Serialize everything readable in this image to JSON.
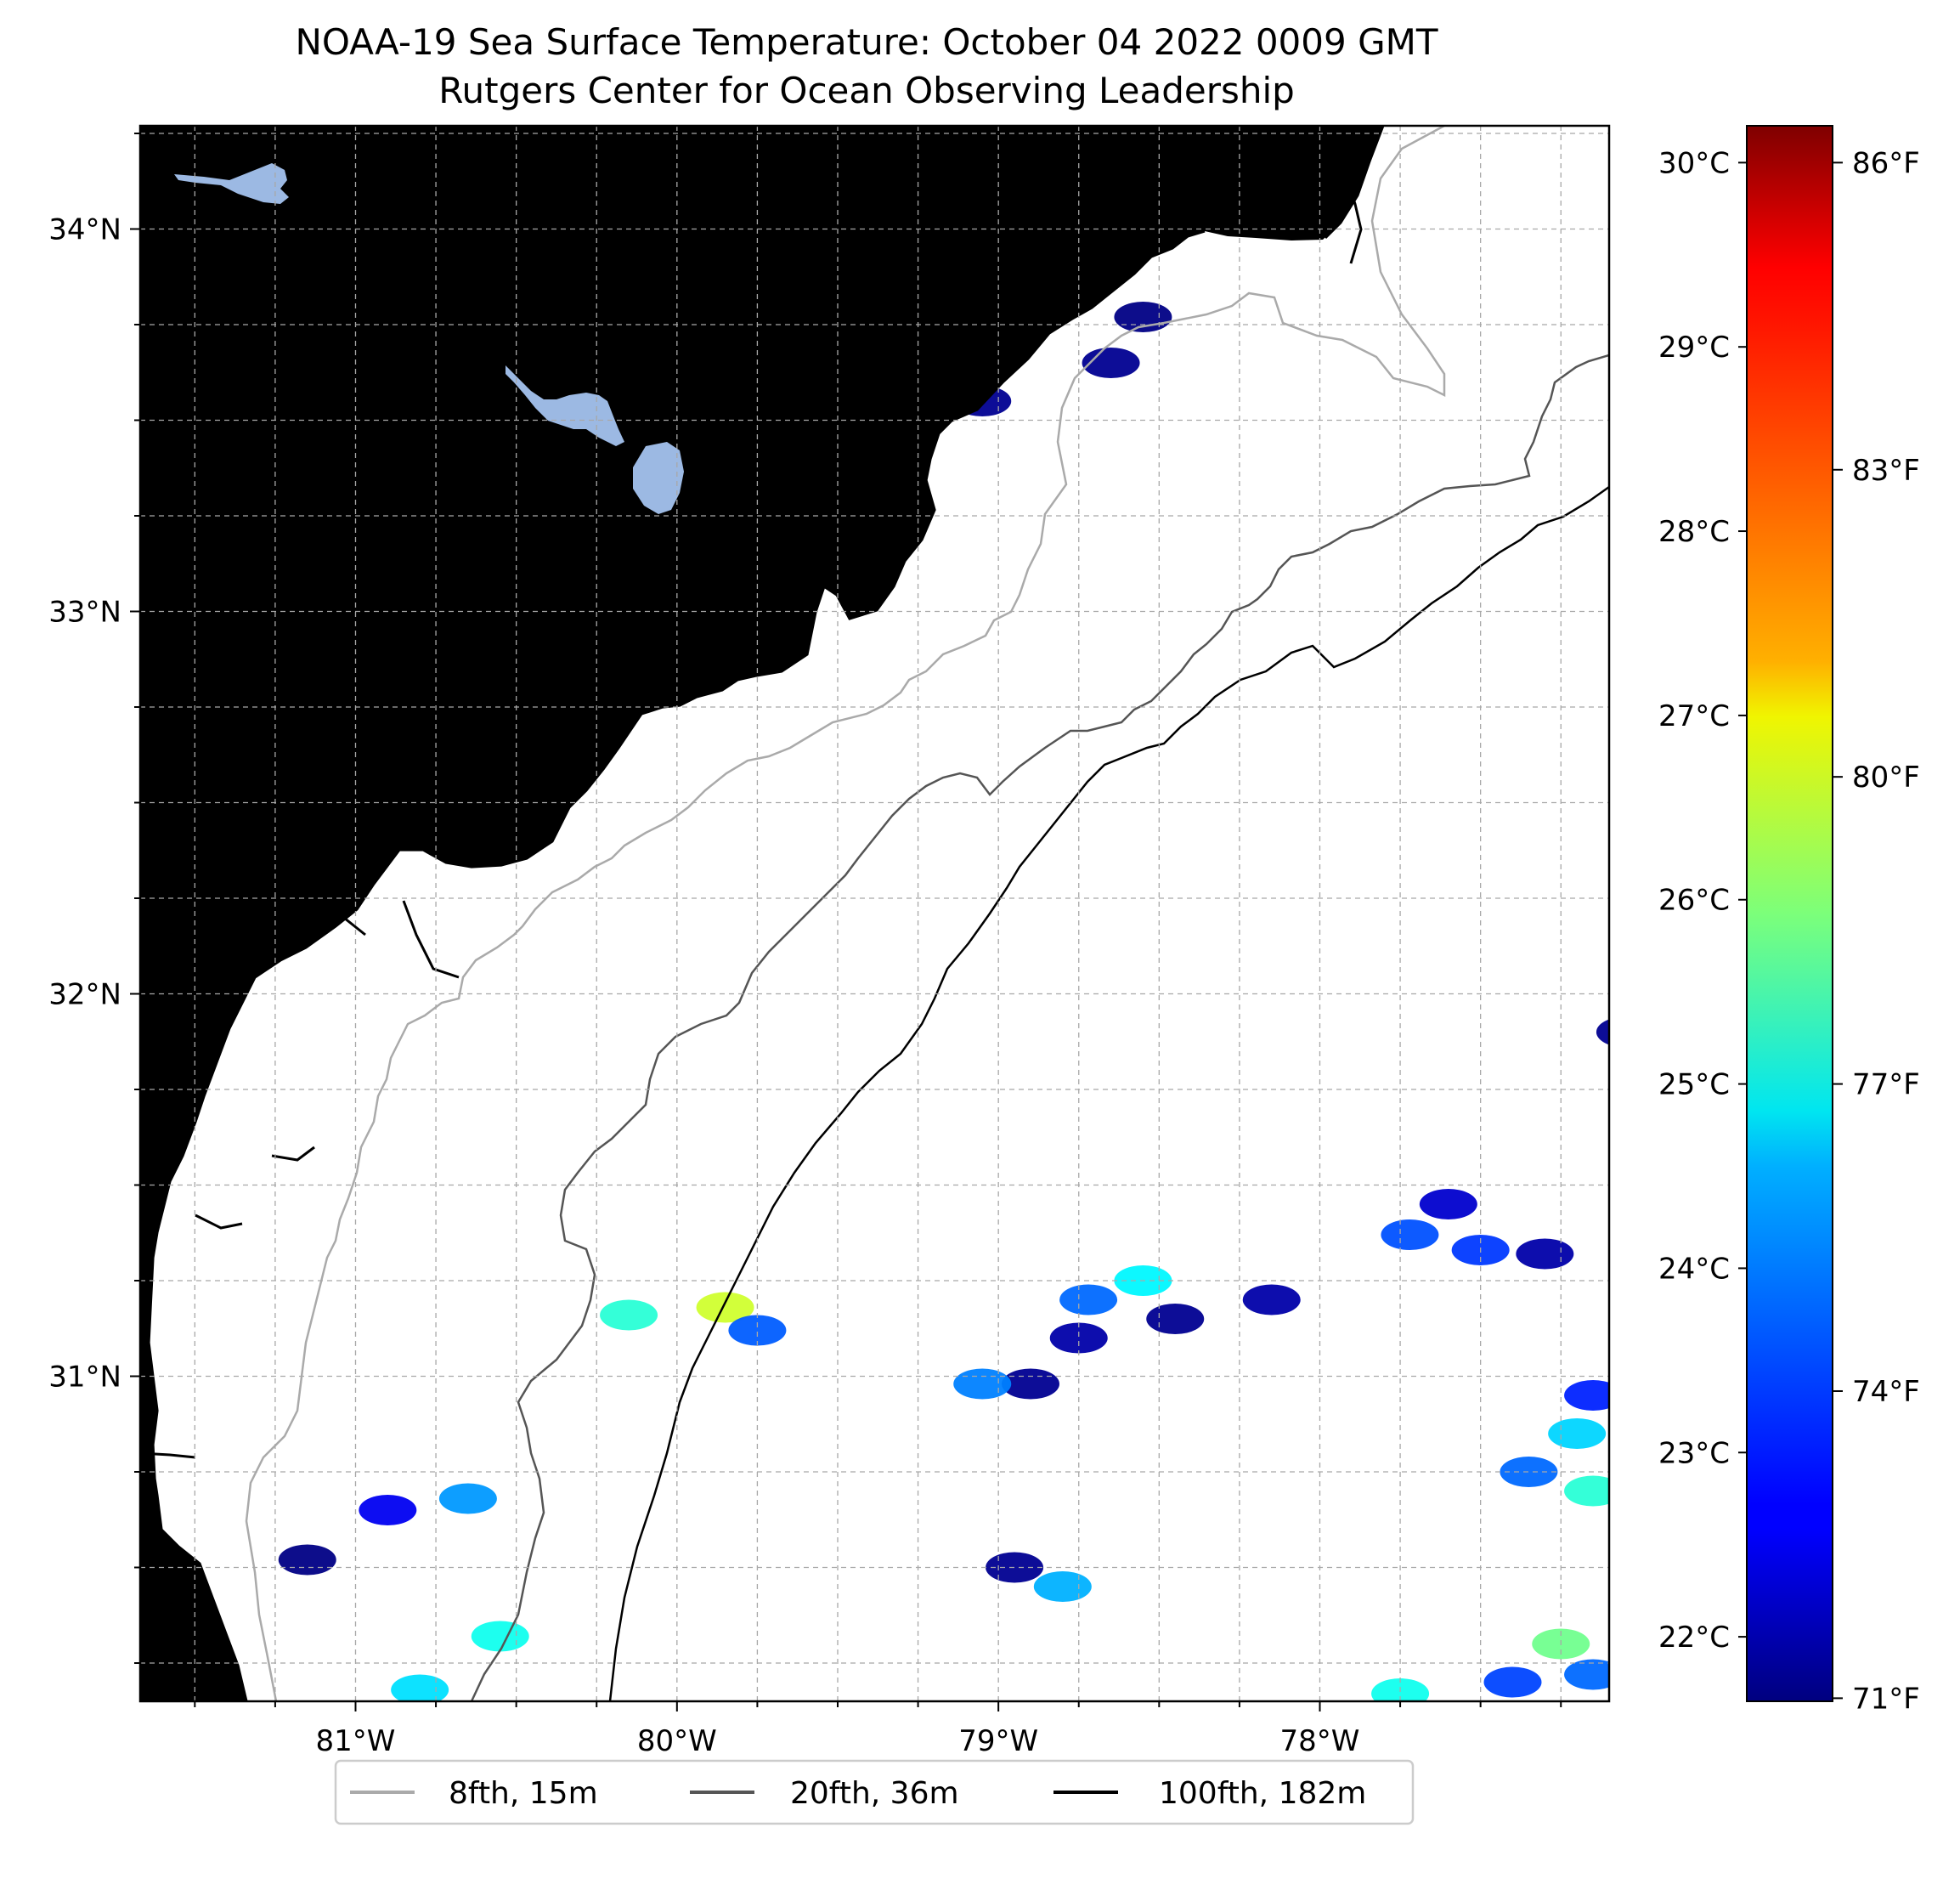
{
  "title": {
    "line1": "NOAA-19 Sea Surface Temperature: October 04 2022 0009 GMT",
    "line2": "Rutgers Center for Ocean Observing Leadership"
  },
  "map": {
    "extent": {
      "lon_min": -81.67,
      "lon_max": -77.1,
      "lat_min": 30.15,
      "lat_max": 34.27
    },
    "lat_ticks": [
      {
        "value": 34,
        "label": "34°N"
      },
      {
        "value": 33,
        "label": "33°N"
      },
      {
        "value": 32,
        "label": "32°N"
      },
      {
        "value": 31,
        "label": "31°N"
      }
    ],
    "lon_ticks": [
      {
        "value": -81,
        "label": "81°W"
      },
      {
        "value": -80,
        "label": "80°W"
      },
      {
        "value": -79,
        "label": "79°W"
      },
      {
        "value": -78,
        "label": "78°W"
      }
    ],
    "land_color": "#d2b48c",
    "water_color": "#9cb9e3",
    "ocean_color": "#ffffff"
  },
  "colorbar": {
    "colormap": "jet",
    "celsius_range": [
      21.65,
      30.2
    ],
    "celsius_ticks": [
      {
        "value": 30,
        "label": "30°C"
      },
      {
        "value": 29,
        "label": "29°C"
      },
      {
        "value": 28,
        "label": "28°C"
      },
      {
        "value": 27,
        "label": "27°C"
      },
      {
        "value": 26,
        "label": "26°C"
      },
      {
        "value": 25,
        "label": "25°C"
      },
      {
        "value": 24,
        "label": "24°C"
      },
      {
        "value": 23,
        "label": "23°C"
      },
      {
        "value": 22,
        "label": "22°C"
      }
    ],
    "fahrenheit_ticks": [
      {
        "value": 86,
        "label": "86°F"
      },
      {
        "value": 83,
        "label": "83°F"
      },
      {
        "value": 80,
        "label": "80°F"
      },
      {
        "value": 77,
        "label": "77°F"
      },
      {
        "value": 74,
        "label": "74°F"
      },
      {
        "value": 71,
        "label": "71°F"
      }
    ]
  },
  "legend": {
    "items": [
      {
        "label": "8fth, 15m",
        "color": "#aaaaaa"
      },
      {
        "label": "20fth, 36m",
        "color": "#555555"
      },
      {
        "label": "100fth, 182m",
        "color": "#000000"
      }
    ]
  },
  "sst_patches": [
    {
      "lon": -78.55,
      "lat": 33.77,
      "temp": 21.7
    },
    {
      "lon": -78.65,
      "lat": 33.65,
      "temp": 21.8
    },
    {
      "lon": -79.05,
      "lat": 33.55,
      "temp": 21.8
    },
    {
      "lon": -77.05,
      "lat": 31.9,
      "temp": 21.8
    },
    {
      "lon": -77.6,
      "lat": 31.45,
      "temp": 22.3
    },
    {
      "lon": -77.72,
      "lat": 31.37,
      "temp": 23.4
    },
    {
      "lon": -77.5,
      "lat": 31.33,
      "temp": 23.2
    },
    {
      "lon": -77.3,
      "lat": 31.32,
      "temp": 22.0
    },
    {
      "lon": -78.72,
      "lat": 31.2,
      "temp": 23.6
    },
    {
      "lon": -78.55,
      "lat": 31.25,
      "temp": 24.8
    },
    {
      "lon": -78.75,
      "lat": 31.1,
      "temp": 22.0
    },
    {
      "lon": -78.45,
      "lat": 31.15,
      "temp": 21.8
    },
    {
      "lon": -78.15,
      "lat": 31.2,
      "temp": 22.0
    },
    {
      "lon": -79.85,
      "lat": 31.18,
      "temp": 26.6
    },
    {
      "lon": -79.75,
      "lat": 31.12,
      "temp": 23.5
    },
    {
      "lon": -80.15,
      "lat": 31.16,
      "temp": 25.2
    },
    {
      "lon": -78.9,
      "lat": 30.98,
      "temp": 21.8
    },
    {
      "lon": -79.05,
      "lat": 30.98,
      "temp": 23.8
    },
    {
      "lon": -77.15,
      "lat": 30.95,
      "temp": 23.0
    },
    {
      "lon": -77.2,
      "lat": 30.85,
      "temp": 24.5
    },
    {
      "lon": -77.15,
      "lat": 30.7,
      "temp": 25.2
    },
    {
      "lon": -77.35,
      "lat": 30.75,
      "temp": 23.6
    },
    {
      "lon": -80.9,
      "lat": 30.65,
      "temp": 22.6
    },
    {
      "lon": -81.15,
      "lat": 30.52,
      "temp": 21.7
    },
    {
      "lon": -80.65,
      "lat": 30.68,
      "temp": 24.0
    },
    {
      "lon": -78.95,
      "lat": 30.5,
      "temp": 21.8
    },
    {
      "lon": -78.8,
      "lat": 30.45,
      "temp": 24.2
    },
    {
      "lon": -80.55,
      "lat": 30.32,
      "temp": 25.0
    },
    {
      "lon": -77.25,
      "lat": 30.3,
      "temp": 25.8
    },
    {
      "lon": -80.8,
      "lat": 30.18,
      "temp": 24.6
    },
    {
      "lon": -77.75,
      "lat": 30.17,
      "temp": 25.0
    },
    {
      "lon": -77.4,
      "lat": 30.2,
      "temp": 23.3
    },
    {
      "lon": -77.15,
      "lat": 30.22,
      "temp": 23.6
    }
  ]
}
